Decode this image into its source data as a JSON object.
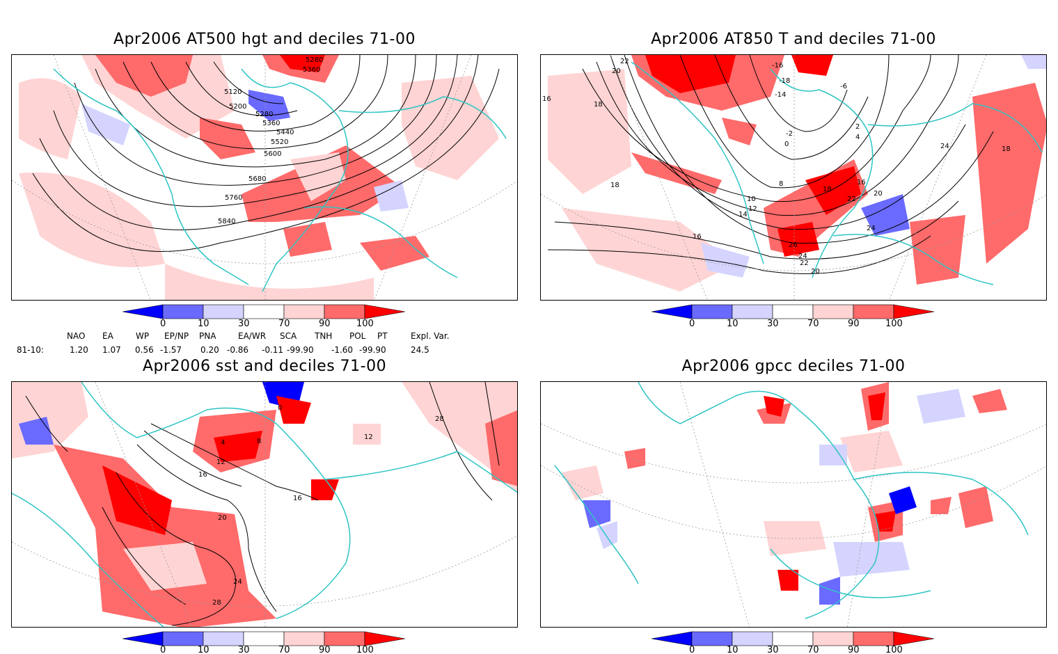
{
  "panels": [
    {
      "title": "Apr2006 AT500 hgt and deciles 71-00",
      "contour_labels": [
        "5120",
        "5200",
        "5280",
        "5280",
        "5360",
        "5360",
        "5440",
        "5520",
        "5600",
        "5680",
        "5760",
        "5840"
      ]
    },
    {
      "title": "Apr2006 AT850 T and deciles 71-00",
      "contour_labels": [
        "22",
        "20",
        "18",
        "16",
        "18",
        "-16",
        "-18",
        "-14",
        "-6",
        "-2",
        "0",
        "2",
        "4",
        "8",
        "10",
        "12",
        "14",
        "16",
        "18",
        "20",
        "22",
        "24",
        "26",
        "24",
        "20",
        "22",
        "24",
        "16",
        "18"
      ]
    },
    {
      "title": "Apr2006 sst and deciles 71-00",
      "contour_labels": [
        "0",
        "4",
        "8",
        "12",
        "16",
        "16",
        "20",
        "24",
        "28",
        "28",
        "12"
      ]
    },
    {
      "title": "Apr2006 gpcc deciles 71-00",
      "contour_labels": []
    }
  ],
  "colorbar": {
    "ticks": [
      "0",
      "10",
      "30",
      "70",
      "90",
      "100"
    ],
    "colors": [
      "#0000ff",
      "#6a6aff",
      "#d4d4ff",
      "#ffffff",
      "#ffd4d4",
      "#ff6a6a",
      "#ff0000"
    ]
  },
  "indices": {
    "header": [
      "NAO",
      "EA",
      "WP",
      "EP/NP",
      "PNA",
      "EA/WR",
      "SCA",
      "TNH",
      "POL",
      "PT",
      "Expl. Var."
    ],
    "row_label": "81-10:",
    "values": [
      "1.20",
      "1.07",
      "0.56",
      "-1.57",
      "0.20",
      "-0.86",
      "-0.11",
      "-99.90",
      "-1.60",
      "-99.90",
      "24.5"
    ]
  },
  "colors": {
    "coast": "#2ec4c4",
    "contour": "#000000",
    "grid": "#9a9a9a"
  }
}
